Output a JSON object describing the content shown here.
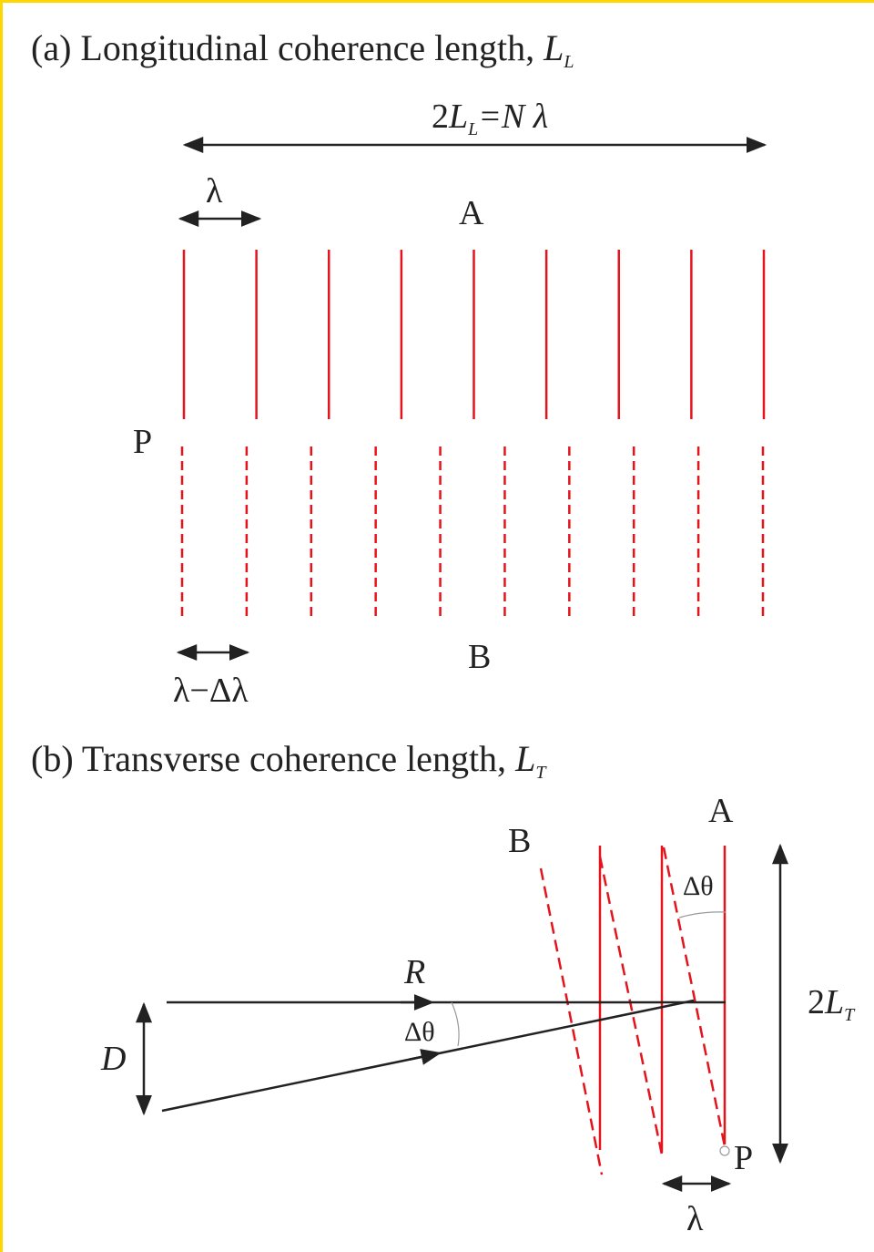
{
  "border_color": "#ffd700",
  "wave_color": "#e3141c",
  "panel_a": {
    "title_prefix": "(a) Longitudinal coherence length, ",
    "title_symbol": "L",
    "title_subscript": "L",
    "length_label": {
      "prefix": "2",
      "symbol": "L",
      "subscript": "L",
      "suffix": "=N λ"
    },
    "wavelength_label": "λ",
    "wavelength_shift_label": "λ−Δλ",
    "point_label": "P",
    "wave_a_label": "A",
    "wave_b_label": "B",
    "wave_a_fronts": 9,
    "wave_b_fronts": 10
  },
  "panel_b": {
    "title_prefix": "(b) Transverse coherence length, ",
    "title_symbol": "L",
    "title_subscript": "T",
    "wave_a_label": "A",
    "wave_b_label": "B",
    "angle_label_top": "Δθ",
    "angle_label_bottom": "Δθ",
    "distance_label": "R",
    "source_size_label": "D",
    "length_label": {
      "prefix": "2",
      "symbol": "L",
      "subscript": "T"
    },
    "point_label": "P",
    "wavelength_label": "λ"
  }
}
